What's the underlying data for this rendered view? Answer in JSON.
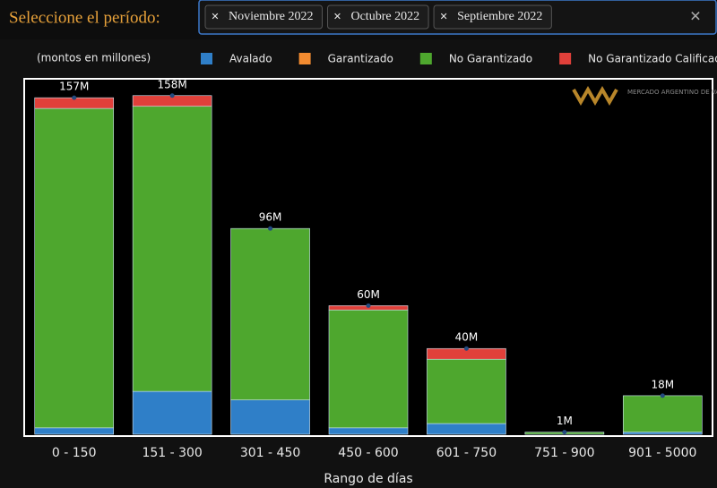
{
  "filter": {
    "label": "Seleccione el período:",
    "chips": [
      "Noviembre 2022",
      "Octubre 2022",
      "Septiembre 2022"
    ]
  },
  "chart_data": {
    "type": "stacked-bar",
    "note": "(montos en millones)",
    "logo": "MERCADO ARGENTINO DE VALORES S.A.",
    "xlabel": "Rango de días",
    "categories": [
      "0 - 150",
      "151 - 300",
      "301 - 450",
      "450 - 600",
      "601 - 750",
      "751 - 900",
      "901 - 5000"
    ],
    "series": [
      {
        "name": "Avalado",
        "color": "#2f7fc8",
        "values": [
          3,
          20,
          16,
          3,
          5,
          0,
          1
        ]
      },
      {
        "name": "Garantizado",
        "color": "#f28b30",
        "values": [
          0,
          0,
          0,
          0,
          0,
          0,
          0
        ]
      },
      {
        "name": "No Garantizado",
        "color": "#4ea72e",
        "values": [
          149,
          133,
          80,
          55,
          30,
          1,
          17
        ]
      },
      {
        "name": "No Garantizado Calificado",
        "color": "#e0403a",
        "values": [
          5,
          5,
          0,
          2,
          5,
          0,
          0
        ]
      }
    ],
    "totals": {
      "values": [
        157,
        158,
        96,
        60,
        40,
        1,
        18
      ],
      "value_labels": [
        "157M",
        "158M",
        "96M",
        "60M",
        "40M",
        "1M",
        "18M"
      ]
    },
    "ylim": [
      0,
      165
    ]
  }
}
